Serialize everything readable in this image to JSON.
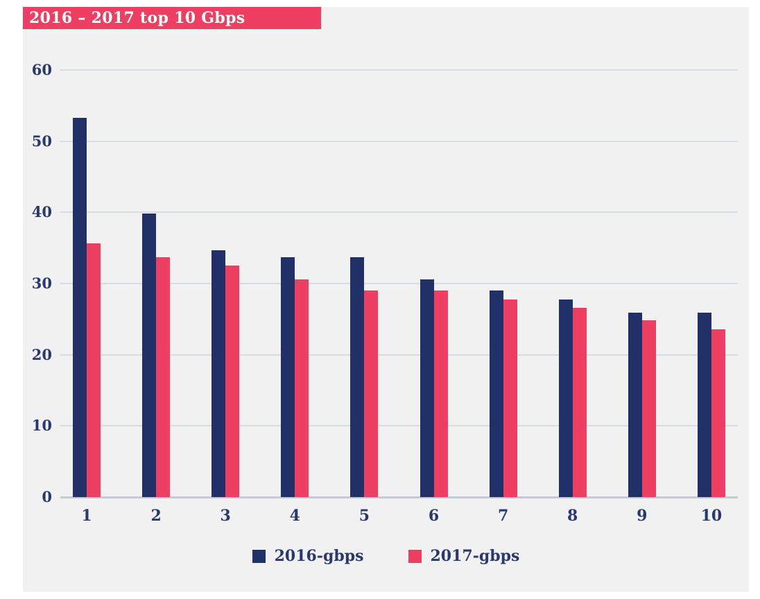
{
  "chart_data": {
    "type": "bar",
    "title": "2016 – 2017 top 10 Gbps",
    "categories": [
      "1",
      "2",
      "3",
      "4",
      "5",
      "6",
      "7",
      "8",
      "9",
      "10"
    ],
    "series": [
      {
        "name": "2016-gbps",
        "color": "#213067",
        "values": [
          53.3,
          39.8,
          34.7,
          33.7,
          33.7,
          30.6,
          29.0,
          27.8,
          25.9,
          25.9
        ]
      },
      {
        "name": "2017-gbps",
        "color": "#ee3f62",
        "values": [
          35.7,
          33.7,
          32.5,
          30.6,
          29.0,
          29.0,
          27.8,
          26.6,
          24.8,
          23.6
        ]
      }
    ],
    "xlabel": "",
    "ylabel": "",
    "ylim": [
      0,
      60
    ],
    "yticks": [
      0,
      10,
      20,
      30,
      40,
      50,
      60
    ],
    "grid": true,
    "legend_position": "bottom"
  },
  "colors": {
    "title_bar_background": "#ee3f62",
    "title_text": "#ffffff",
    "panel_background": "#f1f1f2",
    "gridline": "#d8dbe4",
    "axis_line": "#c5c9d5",
    "axis_text": "#293970"
  }
}
